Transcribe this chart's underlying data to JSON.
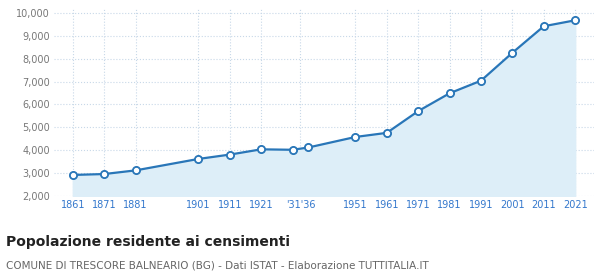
{
  "years": [
    1861,
    1871,
    1881,
    1901,
    1911,
    1921,
    1931,
    1936,
    1951,
    1961,
    1971,
    1981,
    1991,
    2001,
    2011,
    2021
  ],
  "population": [
    2920,
    2960,
    3120,
    3620,
    3810,
    4040,
    4020,
    4120,
    4580,
    4760,
    5710,
    6490,
    7040,
    8260,
    9420,
    9680
  ],
  "xlim_left": 1855,
  "xlim_right": 2027,
  "ylim": [
    2000,
    10200
  ],
  "yticks": [
    2000,
    3000,
    4000,
    5000,
    6000,
    7000,
    8000,
    9000,
    10000
  ],
  "ytick_labels": [
    "2,000",
    "3,000",
    "4,000",
    "5,000",
    "6,000",
    "7,000",
    "8,000",
    "9,000",
    "10,000"
  ],
  "x_tick_positions": [
    1861,
    1871,
    1881,
    1901,
    1911,
    1921,
    1933.5,
    1951,
    1961,
    1971,
    1981,
    1991,
    2001,
    2011,
    2021
  ],
  "x_tick_labels": [
    "1861",
    "1871",
    "1881",
    "1901",
    "1911",
    "1921",
    "'31'36",
    "1951",
    "1961",
    "1971",
    "1981",
    "1991",
    "2001",
    "2011",
    "2021"
  ],
  "line_color": "#2976b8",
  "fill_color": "#ddeef8",
  "marker_face": "#2976b8",
  "marker_edge": "#ffffff",
  "grid_color": "#c8d8e8",
  "background_color": "#ffffff",
  "title": "Popolazione residente ai censimenti",
  "subtitle": "COMUNE DI TRESCORE BALNEARIO (BG) - Dati ISTAT - Elaborazione TUTTITALIA.IT",
  "title_fontsize": 10,
  "subtitle_fontsize": 7.5,
  "tick_color": "#777777",
  "xtick_color": "#3377cc"
}
